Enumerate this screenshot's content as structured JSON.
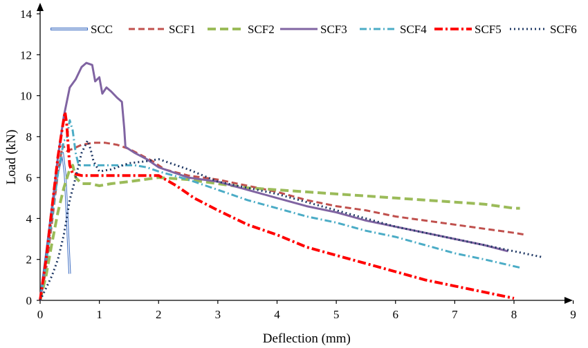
{
  "chart_data": {
    "type": "line",
    "title": "",
    "xlabel": "Deflection (mm)",
    "ylabel": "Load (kN)",
    "xlim": [
      0,
      9
    ],
    "ylim": [
      0,
      14
    ],
    "xticks": [
      "0",
      "1",
      "2",
      "3",
      "4",
      "5",
      "6",
      "7",
      "8",
      "9"
    ],
    "yticks": [
      "0",
      "2",
      "4",
      "6",
      "8",
      "10",
      "12",
      "14"
    ],
    "grid": false,
    "legend": "top",
    "series": [
      {
        "name": "SCC",
        "color": "#4472c4",
        "style": "double",
        "points": [
          [
            0,
            0
          ],
          [
            0.1,
            2.2
          ],
          [
            0.2,
            4.5
          ],
          [
            0.3,
            6.3
          ],
          [
            0.38,
            7.2
          ],
          [
            0.42,
            6.2
          ],
          [
            0.45,
            4.5
          ],
          [
            0.48,
            2.5
          ],
          [
            0.5,
            1.3
          ]
        ]
      },
      {
        "name": "SCF1",
        "color": "#c0504d",
        "style": "dash",
        "points": [
          [
            0,
            0
          ],
          [
            0.1,
            1.5
          ],
          [
            0.2,
            3.8
          ],
          [
            0.3,
            6.2
          ],
          [
            0.38,
            7.6
          ],
          [
            0.45,
            7.3
          ],
          [
            0.55,
            7.4
          ],
          [
            0.7,
            7.6
          ],
          [
            0.9,
            7.7
          ],
          [
            1.1,
            7.7
          ],
          [
            1.3,
            7.6
          ],
          [
            1.5,
            7.4
          ],
          [
            1.7,
            7.1
          ],
          [
            1.9,
            6.8
          ],
          [
            2.1,
            6.4
          ],
          [
            2.5,
            6.1
          ],
          [
            3,
            5.9
          ],
          [
            3.5,
            5.6
          ],
          [
            4,
            5.3
          ],
          [
            4.5,
            4.9
          ],
          [
            5,
            4.6
          ],
          [
            5.5,
            4.4
          ],
          [
            6,
            4.1
          ],
          [
            6.5,
            3.9
          ],
          [
            7,
            3.7
          ],
          [
            7.5,
            3.5
          ],
          [
            8,
            3.3
          ],
          [
            8.2,
            3.2
          ]
        ]
      },
      {
        "name": "SCF2",
        "color": "#9bbb59",
        "style": "longdash",
        "points": [
          [
            0,
            0
          ],
          [
            0.1,
            1.2
          ],
          [
            0.2,
            2.8
          ],
          [
            0.3,
            4.3
          ],
          [
            0.4,
            5.5
          ],
          [
            0.5,
            6.4
          ],
          [
            0.55,
            6.6
          ],
          [
            0.6,
            6.0
          ],
          [
            0.7,
            5.7
          ],
          [
            0.85,
            5.7
          ],
          [
            1.0,
            5.6
          ],
          [
            1.2,
            5.7
          ],
          [
            1.5,
            5.8
          ],
          [
            2,
            6.0
          ],
          [
            2.5,
            5.9
          ],
          [
            3,
            5.7
          ],
          [
            3.5,
            5.5
          ],
          [
            4,
            5.4
          ],
          [
            4.5,
            5.3
          ],
          [
            5,
            5.2
          ],
          [
            5.5,
            5.1
          ],
          [
            6,
            5.0
          ],
          [
            6.5,
            4.9
          ],
          [
            7,
            4.8
          ],
          [
            7.5,
            4.7
          ],
          [
            8,
            4.5
          ],
          [
            8.1,
            4.5
          ]
        ]
      },
      {
        "name": "SCF3",
        "color": "#8064a2",
        "style": "solid",
        "points": [
          [
            0,
            0
          ],
          [
            0.1,
            2.0
          ],
          [
            0.2,
            4.5
          ],
          [
            0.3,
            7.0
          ],
          [
            0.4,
            9.0
          ],
          [
            0.5,
            10.4
          ],
          [
            0.6,
            10.8
          ],
          [
            0.7,
            11.4
          ],
          [
            0.78,
            11.6
          ],
          [
            0.88,
            11.5
          ],
          [
            0.93,
            10.7
          ],
          [
            1.0,
            10.9
          ],
          [
            1.05,
            10.1
          ],
          [
            1.12,
            10.4
          ],
          [
            1.2,
            10.2
          ],
          [
            1.3,
            9.9
          ],
          [
            1.38,
            9.7
          ],
          [
            1.42,
            8.4
          ],
          [
            1.44,
            7.5
          ],
          [
            1.6,
            7.2
          ],
          [
            1.8,
            6.9
          ],
          [
            2,
            6.5
          ],
          [
            2.5,
            6.0
          ],
          [
            3,
            5.8
          ],
          [
            3.5,
            5.4
          ],
          [
            4,
            5.0
          ],
          [
            4.5,
            4.6
          ],
          [
            5,
            4.3
          ],
          [
            5.5,
            3.9
          ],
          [
            6,
            3.6
          ],
          [
            6.5,
            3.3
          ],
          [
            7,
            3.0
          ],
          [
            7.5,
            2.7
          ],
          [
            7.9,
            2.4
          ]
        ]
      },
      {
        "name": "SCF4",
        "color": "#4bacc6",
        "style": "dashdot",
        "points": [
          [
            0,
            0
          ],
          [
            0.1,
            1.8
          ],
          [
            0.2,
            4.0
          ],
          [
            0.3,
            6.2
          ],
          [
            0.4,
            7.8
          ],
          [
            0.45,
            7.9
          ],
          [
            0.5,
            8.8
          ],
          [
            0.55,
            8.3
          ],
          [
            0.6,
            7.2
          ],
          [
            0.65,
            6.6
          ],
          [
            0.8,
            6.6
          ],
          [
            1,
            6.6
          ],
          [
            1.3,
            6.6
          ],
          [
            1.6,
            6.6
          ],
          [
            1.8,
            6.5
          ],
          [
            2,
            6.3
          ],
          [
            2.5,
            5.9
          ],
          [
            3,
            5.4
          ],
          [
            3.5,
            4.9
          ],
          [
            4,
            4.5
          ],
          [
            4.5,
            4.1
          ],
          [
            5,
            3.8
          ],
          [
            5.5,
            3.4
          ],
          [
            6,
            3.1
          ],
          [
            6.5,
            2.7
          ],
          [
            7,
            2.3
          ],
          [
            7.5,
            2.0
          ],
          [
            8.1,
            1.6
          ]
        ]
      },
      {
        "name": "SCF5",
        "color": "#ff0000",
        "style": "dashdot2",
        "points": [
          [
            0,
            0
          ],
          [
            0.1,
            2.0
          ],
          [
            0.2,
            4.5
          ],
          [
            0.3,
            7.0
          ],
          [
            0.38,
            8.5
          ],
          [
            0.42,
            9.2
          ],
          [
            0.45,
            8.6
          ],
          [
            0.48,
            7.3
          ],
          [
            0.5,
            6.6
          ],
          [
            0.55,
            6.2
          ],
          [
            0.7,
            6.1
          ],
          [
            1,
            6.1
          ],
          [
            1.5,
            6.1
          ],
          [
            2,
            6.1
          ],
          [
            2.3,
            5.6
          ],
          [
            2.6,
            5.0
          ],
          [
            3,
            4.4
          ],
          [
            3.5,
            3.7
          ],
          [
            4,
            3.2
          ],
          [
            4.5,
            2.6
          ],
          [
            5,
            2.2
          ],
          [
            5.5,
            1.8
          ],
          [
            6,
            1.4
          ],
          [
            6.5,
            1.0
          ],
          [
            7,
            0.7
          ],
          [
            7.5,
            0.4
          ],
          [
            8,
            0.1
          ]
        ]
      },
      {
        "name": "SCF6",
        "color": "#1f3864",
        "style": "dot",
        "points": [
          [
            0,
            0
          ],
          [
            0.1,
            0.6
          ],
          [
            0.2,
            1.2
          ],
          [
            0.3,
            2.0
          ],
          [
            0.4,
            3.2
          ],
          [
            0.5,
            4.9
          ],
          [
            0.6,
            6.0
          ],
          [
            0.7,
            7.2
          ],
          [
            0.8,
            7.8
          ],
          [
            0.85,
            7.4
          ],
          [
            0.9,
            6.8
          ],
          [
            1,
            6.3
          ],
          [
            1.2,
            6.4
          ],
          [
            1.5,
            6.7
          ],
          [
            1.8,
            6.8
          ],
          [
            2,
            6.9
          ],
          [
            2.2,
            6.7
          ],
          [
            2.5,
            6.4
          ],
          [
            3,
            5.8
          ],
          [
            3.5,
            5.5
          ],
          [
            4,
            5.2
          ],
          [
            4.5,
            4.8
          ],
          [
            5,
            4.4
          ],
          [
            5.5,
            4.0
          ],
          [
            6,
            3.6
          ],
          [
            6.5,
            3.3
          ],
          [
            7,
            3.0
          ],
          [
            7.5,
            2.7
          ],
          [
            8,
            2.4
          ],
          [
            8.5,
            2.1
          ]
        ]
      }
    ]
  }
}
